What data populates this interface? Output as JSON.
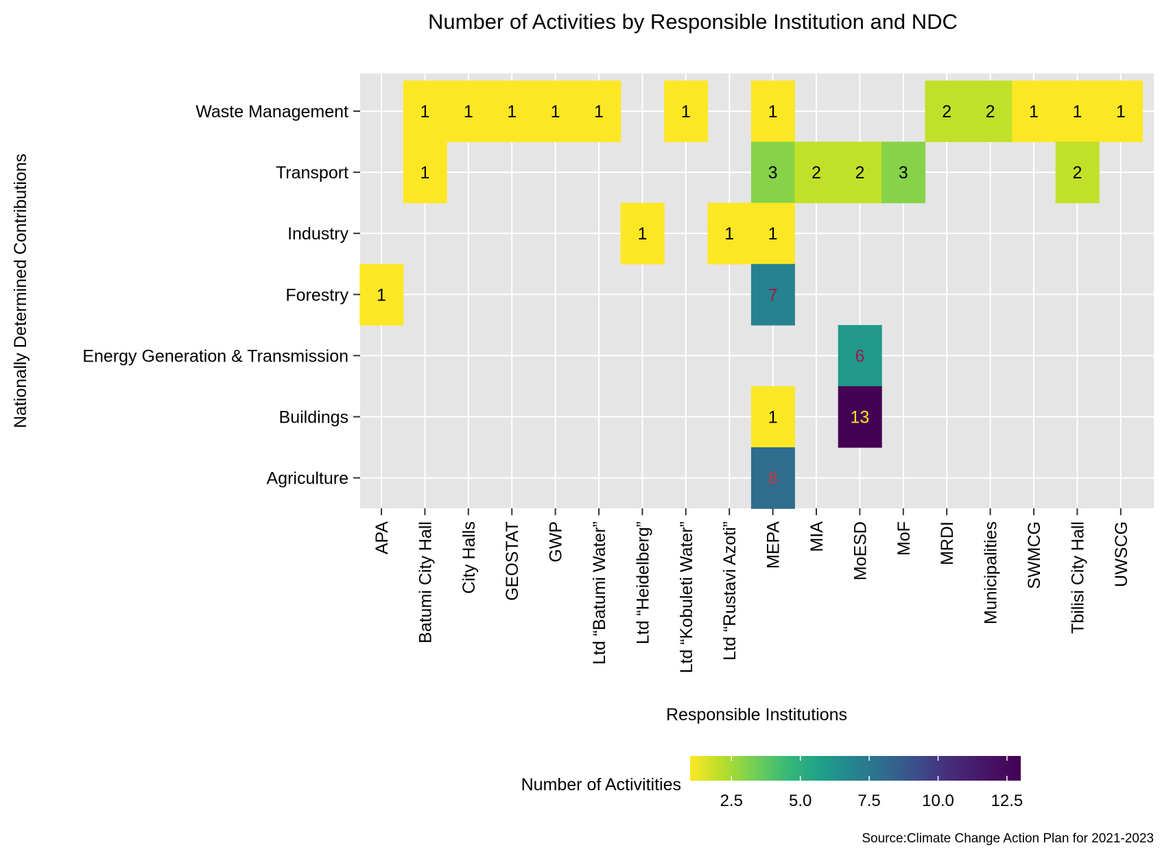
{
  "chart_data": {
    "type": "heatmap",
    "title": "Number of Activities by Responsible Institution and NDC",
    "xlabel": "Responsible Institutions",
    "ylabel": "Nationally Determined Contributions",
    "caption": "Source:Climate Change Action Plan for 2021-2023",
    "x_categories": [
      "APA",
      "Batumi City Hall",
      "City Halls",
      "GEOSTAT",
      "GWP",
      "Ltd “Batumi Water”",
      "Ltd “Heidelberg”",
      "Ltd “Kobuleti Water”",
      "Ltd “Rustavi Azoti”",
      "MEPA",
      "MIA",
      "MoESD",
      "MoF",
      "MRDI",
      "Municipalities",
      "SWMCG",
      "Tbilisi City Hall",
      "UWSCG"
    ],
    "y_categories": [
      "Waste Management",
      "Transport",
      "Industry",
      "Forestry",
      "Energy Generation & Transmission",
      "Buildings",
      "Agriculture"
    ],
    "cells": [
      {
        "x": "Batumi City Hall",
        "y": "Waste Management",
        "value": 1
      },
      {
        "x": "City Halls",
        "y": "Waste Management",
        "value": 1
      },
      {
        "x": "GEOSTAT",
        "y": "Waste Management",
        "value": 1
      },
      {
        "x": "GWP",
        "y": "Waste Management",
        "value": 1
      },
      {
        "x": "Ltd “Batumi Water”",
        "y": "Waste Management",
        "value": 1
      },
      {
        "x": "Ltd “Kobuleti Water”",
        "y": "Waste Management",
        "value": 1
      },
      {
        "x": "MEPA",
        "y": "Waste Management",
        "value": 1
      },
      {
        "x": "MRDI",
        "y": "Waste Management",
        "value": 2
      },
      {
        "x": "Municipalities",
        "y": "Waste Management",
        "value": 2
      },
      {
        "x": "SWMCG",
        "y": "Waste Management",
        "value": 1
      },
      {
        "x": "Tbilisi City Hall",
        "y": "Waste Management",
        "value": 1
      },
      {
        "x": "UWSCG",
        "y": "Waste Management",
        "value": 1
      },
      {
        "x": "Batumi City Hall",
        "y": "Transport",
        "value": 1
      },
      {
        "x": "MEPA",
        "y": "Transport",
        "value": 3
      },
      {
        "x": "MIA",
        "y": "Transport",
        "value": 2
      },
      {
        "x": "MoESD",
        "y": "Transport",
        "value": 2
      },
      {
        "x": "MoF",
        "y": "Transport",
        "value": 3
      },
      {
        "x": "Tbilisi City Hall",
        "y": "Transport",
        "value": 2
      },
      {
        "x": "Ltd “Heidelberg”",
        "y": "Industry",
        "value": 1
      },
      {
        "x": "Ltd “Rustavi Azoti”",
        "y": "Industry",
        "value": 1
      },
      {
        "x": "MEPA",
        "y": "Industry",
        "value": 1
      },
      {
        "x": "APA",
        "y": "Forestry",
        "value": 1
      },
      {
        "x": "MEPA",
        "y": "Forestry",
        "value": 7
      },
      {
        "x": "MoESD",
        "y": "Energy Generation & Transmission",
        "value": 6
      },
      {
        "x": "MEPA",
        "y": "Buildings",
        "value": 1
      },
      {
        "x": "MoESD",
        "y": "Buildings",
        "value": 13
      },
      {
        "x": "MEPA",
        "y": "Agriculture",
        "value": 8
      }
    ],
    "colorbar": {
      "title": "Number of Activitities",
      "scale": "viridis (reversed)",
      "range": [
        1,
        13
      ],
      "ticks": [
        2.5,
        5.0,
        7.5,
        10.0,
        12.5
      ],
      "tick_labels": [
        "2.5",
        "5.0",
        "7.5",
        "10.0",
        "12.5"
      ],
      "position": "bottom"
    },
    "label_colors": {
      "low": "#000000",
      "mid": "#9b1b4b",
      "mid_red": "#c43a3a",
      "high": "#fde725"
    },
    "panel_background": "#e5e5e5",
    "grid_color": "#ffffff",
    "grid": true
  }
}
